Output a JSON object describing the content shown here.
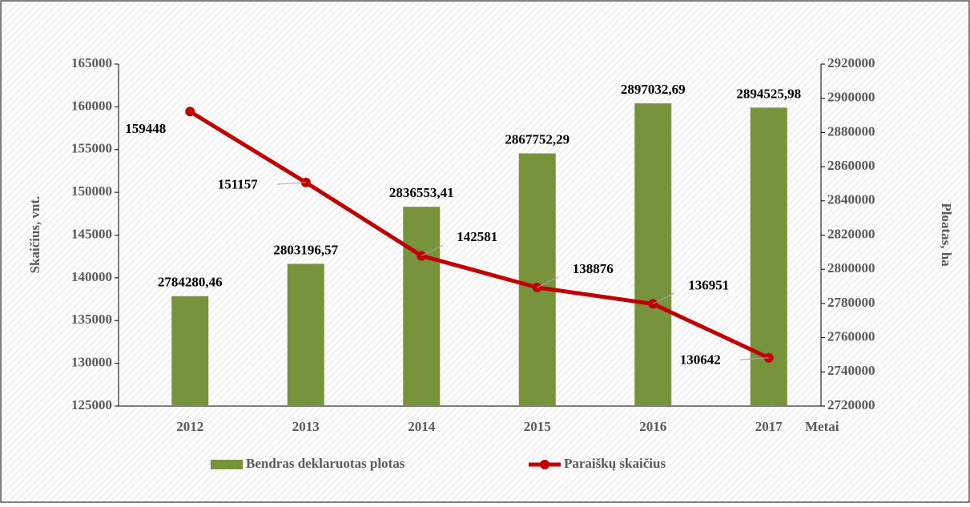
{
  "chart_data": {
    "type": "bar-line",
    "categories": [
      "2012",
      "2013",
      "2014",
      "2015",
      "2016",
      "2017"
    ],
    "x_label": "Metai",
    "y_label": "Skaičius, vnt.",
    "y2_label": "Ploatas, ha",
    "series": [
      {
        "name": "Bendras deklaruotas plotas",
        "type": "bar",
        "axis": "y2",
        "color": "#77933c",
        "values": [
          2784280.46,
          2803196.57,
          2836553.41,
          2867752.29,
          2897032.69,
          2894525.98
        ],
        "value_labels": [
          "2784280,46",
          "2803196,57",
          "2836553,41",
          "2867752,29",
          "2897032,69",
          "2894525,98"
        ]
      },
      {
        "name": "Paraiškų skaičius",
        "type": "line",
        "axis": "y",
        "color": "#c00000",
        "values": [
          159448,
          151157,
          142581,
          138876,
          136951,
          130642
        ]
      }
    ],
    "ylim": [
      125000,
      165000
    ],
    "yticks": [
      125000,
      130000,
      135000,
      140000,
      145000,
      150000,
      155000,
      160000,
      165000
    ],
    "y2lim": [
      2720000,
      2920000
    ],
    "y2ticks": [
      2720000,
      2740000,
      2760000,
      2780000,
      2800000,
      2820000,
      2840000,
      2860000,
      2880000,
      2900000,
      2920000
    ],
    "legend": "bottom"
  }
}
